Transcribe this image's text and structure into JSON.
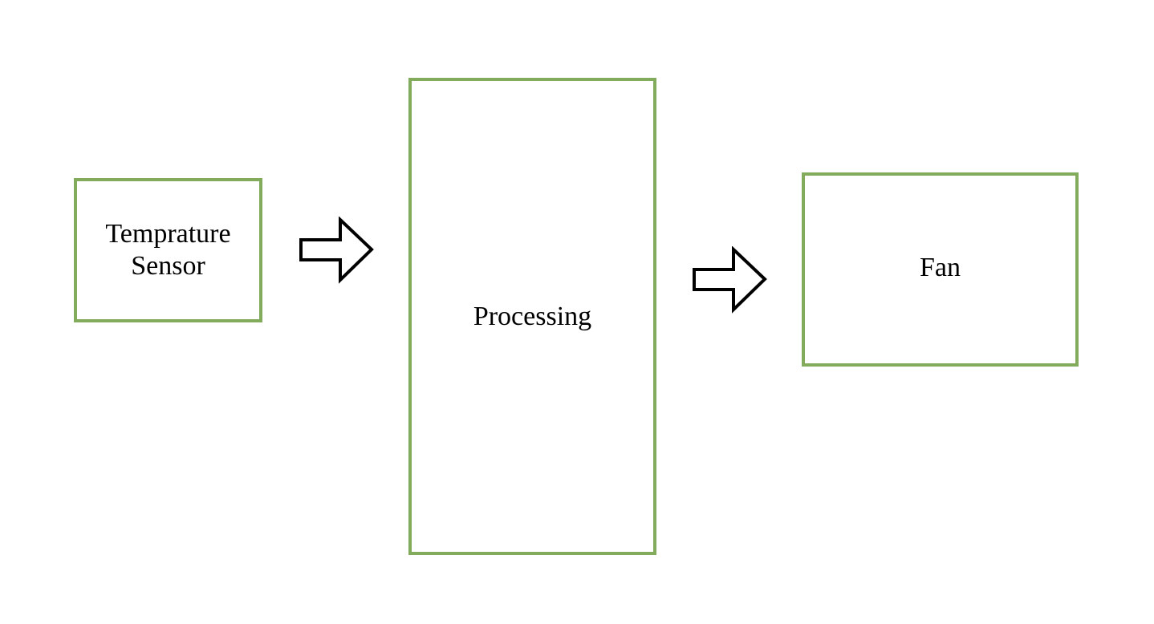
{
  "diagram": {
    "nodes": [
      {
        "id": "sensor",
        "label": "Temprature\nSensor"
      },
      {
        "id": "processing",
        "label": "Processing"
      },
      {
        "id": "fan",
        "label": "Fan"
      }
    ],
    "edges": [
      {
        "from": "sensor",
        "to": "processing"
      },
      {
        "from": "processing",
        "to": "fan"
      }
    ],
    "colors": {
      "box_border": "#82ab5c",
      "arrow_stroke": "#000000",
      "background": "#ffffff"
    }
  }
}
